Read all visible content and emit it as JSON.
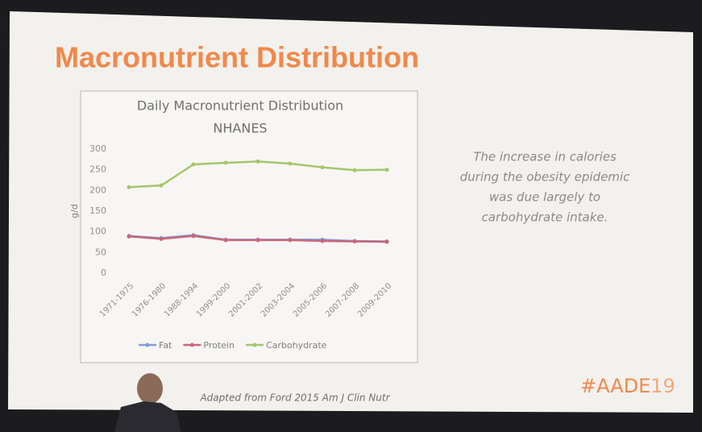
{
  "slide_title": "Macronutrient Distribution",
  "side_text": [
    "The increase in calories",
    "during the obesity epidemic",
    "was due largely to",
    "carbohydrate intake."
  ],
  "footer": "Adapted from Ford 2015 Am J Clin Nutr",
  "logo": {
    "main": "#AADE",
    "year": "19"
  },
  "chart_data": {
    "type": "line",
    "title": "Daily Macronutrient Distribution",
    "subtitle": "NHANES",
    "y_label": "g/d",
    "categories": [
      "1971-1975",
      "1976-1980",
      "1988-1994",
      "1999-2000",
      "2001-2002",
      "2003-2004",
      "2005-2006",
      "2007-2008",
      "2009-2010"
    ],
    "series": [
      {
        "name": "Fat",
        "color": "#7f9ed6",
        "values": [
          90,
          85,
          92,
          81,
          81,
          81,
          81,
          78,
          77
        ]
      },
      {
        "name": "Protein",
        "color": "#c9667a",
        "values": [
          89,
          83,
          90,
          80,
          80,
          80,
          78,
          77,
          76
        ]
      },
      {
        "name": "Carbohydrate",
        "color": "#a4c66a",
        "values": [
          208,
          212,
          263,
          267,
          270,
          265,
          256,
          249,
          250
        ]
      }
    ],
    "ylim": [
      0,
      300
    ],
    "yticks": [
      0,
      50,
      100,
      150,
      200,
      250,
      300
    ],
    "grid": false,
    "legend": "bottom"
  }
}
